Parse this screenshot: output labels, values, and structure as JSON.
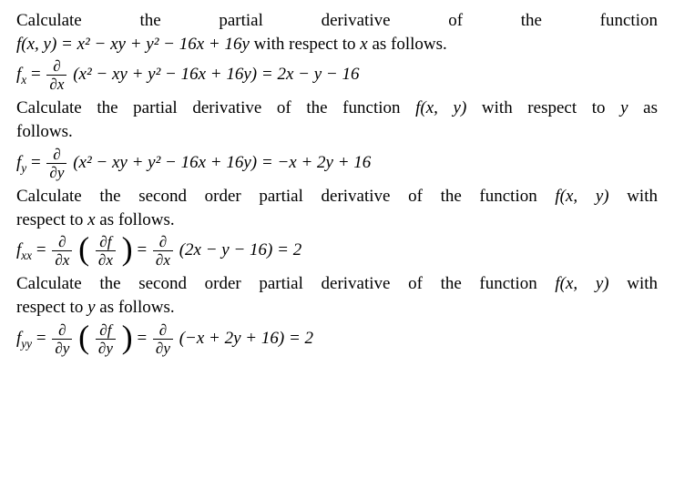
{
  "typography": {
    "font_family": "Times New Roman",
    "font_size_pt": 14,
    "color": "#000000",
    "background": "#ffffff"
  },
  "lines": {
    "l1": "Calculate the partial derivative of the function",
    "l2a": "f(x, y) = x² − xy + y² − 16x + 16y",
    "l2b": " with respect to ",
    "l2c": "x",
    "l2d": " as follows.",
    "eq1_lhs": "f",
    "eq1_sub": "x",
    "eq1_eq": " = ",
    "eq1_dnum": "∂",
    "eq1_dden": "∂x",
    "eq1_body": "(x² − xy + y² − 16x + 16y) = 2x − y − 16",
    "l3a": "Calculate the partial derivative of the function ",
    "l3b": "f(x, y)",
    "l3c": " with respect to ",
    "l3d": "y",
    "l3e": " as",
    "l3f": "follows.",
    "eq2_sub": "y",
    "eq2_dden": "∂y",
    "eq2_body": "(x² − xy + y² − 16x + 16y) = −x + 2y + 16",
    "l4a": "Calculate the second order partial derivative of the function ",
    "l4b": "f(x, y)",
    "l4c": " with",
    "l4d": "respect to ",
    "l4e": "x",
    "l4f": " as follows.",
    "eq3_sub": "xx",
    "eq3_inum": "∂f",
    "eq3_iden": "∂x",
    "eq3_body": "(2x − y − 16) = 2",
    "l5a": "Calculate the second order partial derivative of the function ",
    "l5b": "f(x, y)",
    "l5c": "with",
    "l5d": "respect to ",
    "l5e": "y",
    "l5f": " as follows.",
    "eq4_sub": "yy",
    "eq4_iden": "∂y",
    "eq4_body": "(−x + 2y + 16) = 2"
  }
}
